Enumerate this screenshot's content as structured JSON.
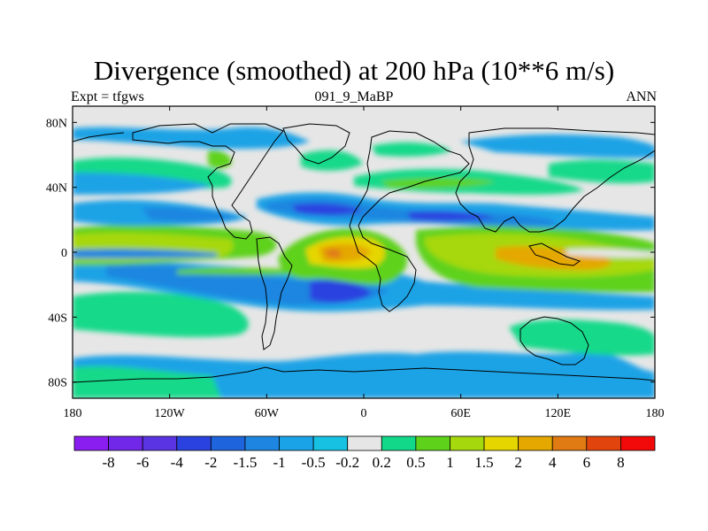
{
  "title": "Divergence (smoothed) at 200 hPa (10**6 m/s)",
  "left_label": "Expt = tfgws",
  "center_label": "091_9_MaBP",
  "right_label": "ANN",
  "chart_data": {
    "type": "heatmap",
    "projection": "cylindrical-equidistant",
    "title": "Divergence (smoothed) at 200 hPa (10**6 m/s)",
    "variable": "divergence",
    "units": "10**6 m/s",
    "level": "200 hPa",
    "experiment": "tfgws",
    "case": "091_9_MaBP",
    "season": "ANN",
    "xlim": [
      -180,
      180
    ],
    "ylim": [
      -90,
      90
    ],
    "x_ticks": [
      {
        "value": -180,
        "label": "180"
      },
      {
        "value": -120,
        "label": "120W"
      },
      {
        "value": -60,
        "label": "60W"
      },
      {
        "value": 0,
        "label": "0"
      },
      {
        "value": 60,
        "label": "60E"
      },
      {
        "value": 120,
        "label": "120E"
      },
      {
        "value": 180,
        "label": "180"
      }
    ],
    "y_ticks": [
      {
        "value": 80,
        "label": "80N"
      },
      {
        "value": 40,
        "label": "40N"
      },
      {
        "value": 0,
        "label": "0"
      },
      {
        "value": -40,
        "label": "40S"
      },
      {
        "value": -80,
        "label": "80S"
      }
    ],
    "colorbar_levels": [
      "-8",
      "-6",
      "-4",
      "-2",
      "-1.5",
      "-1",
      "-0.5",
      "-0.2",
      "0.2",
      "0.5",
      "1",
      "1.5",
      "2",
      "4",
      "6",
      "8"
    ],
    "colorbar_colors": [
      "#8a1ef0",
      "#7128e8",
      "#5a34e2",
      "#2a42e0",
      "#1e64dc",
      "#1e86e0",
      "#1aa3e6",
      "#16c1e2",
      "#e6e6e6",
      "#12d98a",
      "#5ed21a",
      "#a6d80e",
      "#e6d600",
      "#e4a800",
      "#e07a12",
      "#e2440e",
      "#f20a0a"
    ],
    "features": [
      {
        "type": "divergence-max",
        "lon": 10,
        "lat": 5,
        "value": 4
      },
      {
        "type": "divergence-max",
        "lon": 105,
        "lat": -5,
        "value": 2
      },
      {
        "type": "convergence-min",
        "lon": -5,
        "lat": -20,
        "value": -2
      },
      {
        "type": "convergence-min",
        "lon": 60,
        "lat": 30,
        "value": -1.5
      }
    ]
  }
}
